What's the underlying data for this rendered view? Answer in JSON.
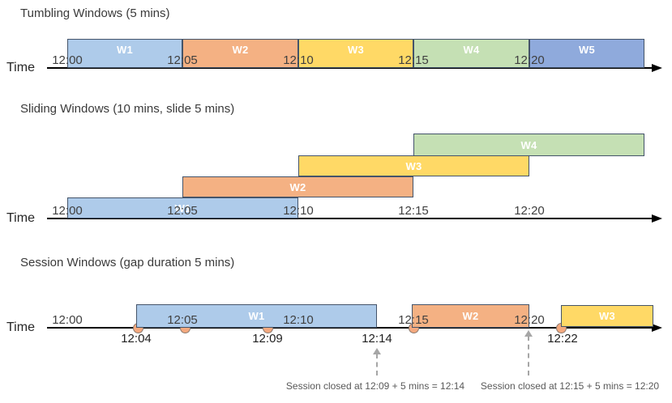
{
  "colors": {
    "window_blue": "#AECBEA",
    "window_orange": "#F4B183",
    "window_yellow": "#FFD966",
    "window_green": "#C5E0B4",
    "window_periwinkle": "#8FAADC",
    "window_border": "#44546A",
    "event_dot_fill": "#F4A97F",
    "event_dot_border": "#8C7B70",
    "axis_color": "#000000",
    "annotation_gray": "#595959",
    "arrow_gray": "#A6A6A6"
  },
  "diagrams": [
    {
      "id": "tumbling",
      "title": "Tumbling Windows (5 mins)",
      "time_axis_label": "Time",
      "ticks": [
        "12:00",
        "12:05",
        "12:10",
        "12:15",
        "12:20"
      ],
      "windows": [
        {
          "label": "W1",
          "color": "window_blue"
        },
        {
          "label": "W2",
          "color": "window_orange"
        },
        {
          "label": "W3",
          "color": "window_yellow"
        },
        {
          "label": "W4",
          "color": "window_green"
        },
        {
          "label": "W5",
          "color": "window_periwinkle"
        }
      ]
    },
    {
      "id": "sliding",
      "title": "Sliding Windows (10 mins, slide 5 mins)",
      "time_axis_label": "Time",
      "ticks": [
        "12:00",
        "12:05",
        "12:10",
        "12:15",
        "12:20"
      ],
      "windows": [
        {
          "label": "W1",
          "color": "window_blue"
        },
        {
          "label": "W2",
          "color": "window_orange"
        },
        {
          "label": "W3",
          "color": "window_yellow"
        },
        {
          "label": "W4",
          "color": "window_green"
        }
      ]
    },
    {
      "id": "session",
      "title": "Session Windows (gap duration 5 mins)",
      "time_axis_label": "Time",
      "ticks": [
        "12:00",
        "12:05",
        "12:10",
        "12:15",
        "12:20"
      ],
      "windows": [
        {
          "label": "W1",
          "color": "window_blue"
        },
        {
          "label": "W2",
          "color": "window_orange"
        },
        {
          "label": "W3",
          "color": "window_yellow"
        }
      ],
      "event_labels": [
        "12:04",
        "12:09",
        "12:14",
        "12:22"
      ],
      "annotations": [
        "Session closed at 12:09 + 5 mins = 12:14",
        "Session closed at 12:15 + 5 mins = 12:20"
      ]
    }
  ]
}
